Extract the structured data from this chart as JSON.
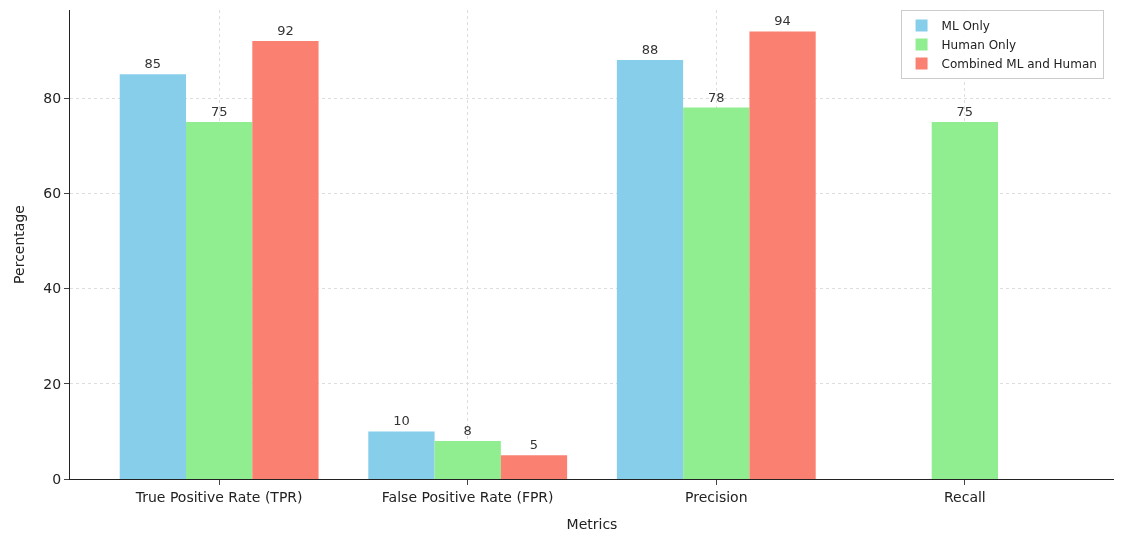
{
  "chart_data": {
    "type": "bar",
    "xlabel": "Metrics",
    "ylabel": "Percentage",
    "categories": [
      "True Positive Rate (TPR)",
      "False Positive Rate (FPR)",
      "Precision",
      "Recall"
    ],
    "series": [
      {
        "name": "ML Only",
        "color": "#87ceeb",
        "values": [
          85,
          10,
          88,
          null
        ]
      },
      {
        "name": "Human Only",
        "color": "#90ee90",
        "values": [
          75,
          8,
          78,
          75
        ]
      },
      {
        "name": "Combined ML and Human",
        "color": "#fa8072",
        "values": [
          92,
          5,
          94,
          null
        ]
      }
    ],
    "ylim": [
      0,
      98.5
    ],
    "yticks": [
      0,
      20,
      40,
      60,
      80
    ],
    "grid": true,
    "legend": "top right",
    "data_labels": true
  }
}
